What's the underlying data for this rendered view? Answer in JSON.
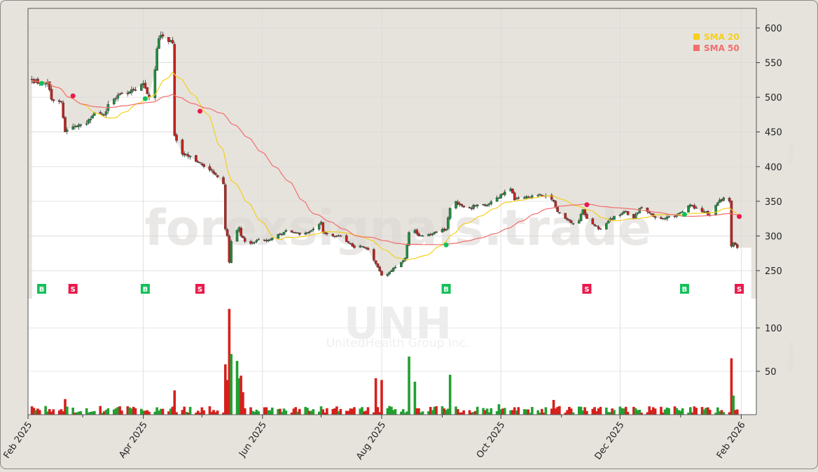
{
  "chart_data": {
    "type": "candlestick",
    "ticker": "UNH",
    "company": "UnitedHealth Group Inc.",
    "watermark": "forexsignals.trade",
    "ylabel": "Price",
    "ylabel_volume": "Volume",
    "ylim": [
      218,
      625
    ],
    "yticks": [
      250,
      300,
      350,
      400,
      450,
      500,
      550,
      600
    ],
    "volume_ylim": [
      0,
      135
    ],
    "volume_yticks": [
      50,
      100
    ],
    "xticks": [
      {
        "date": "2025-02-01",
        "label": "Feb 2025"
      },
      {
        "date": "2025-04-01",
        "label": "Apr 2025"
      },
      {
        "date": "2025-06-01",
        "label": "Jun 2025"
      },
      {
        "date": "2025-08-01",
        "label": "Aug 2025"
      },
      {
        "date": "2025-10-01",
        "label": "Oct 2025"
      },
      {
        "date": "2025-12-01",
        "label": "Dec 2025"
      },
      {
        "date": "2026-02-01",
        "label": "Feb 2026"
      }
    ],
    "minor_xticks": [
      "2025-03-01",
      "2025-05-01",
      "2025-07-01",
      "2025-09-01",
      "2025-11-01",
      "2026-01-01"
    ],
    "legend": [
      {
        "label": "SMA 20",
        "color": "#f5cf1d",
        "period": 20
      },
      {
        "label": "SMA 50",
        "color": "#f26d6d",
        "period": 50
      }
    ],
    "legend_position": "top-right",
    "grid": true,
    "colors": {
      "up": "#1f8f3c",
      "down": "#c3211f",
      "buy": "#14c05a",
      "sell": "#ea1a4b",
      "panel": "#e6e3dd"
    },
    "close_anchors": [
      [
        "2025-02-03",
        525
      ],
      [
        "2025-02-07",
        520
      ],
      [
        "2025-02-11",
        522
      ],
      [
        "2025-02-13",
        497
      ],
      [
        "2025-02-14",
        495
      ],
      [
        "2025-02-18",
        493
      ],
      [
        "2025-02-20",
        450
      ],
      [
        "2025-02-25",
        458
      ],
      [
        "2025-03-03",
        462
      ],
      [
        "2025-03-07",
        478
      ],
      [
        "2025-03-12",
        474
      ],
      [
        "2025-03-14",
        490
      ],
      [
        "2025-03-21",
        505
      ],
      [
        "2025-03-28",
        510
      ],
      [
        "2025-04-01",
        520
      ],
      [
        "2025-04-03",
        505
      ],
      [
        "2025-04-04",
        500
      ],
      [
        "2025-04-07",
        540
      ],
      [
        "2025-04-08",
        570
      ],
      [
        "2025-04-09",
        585
      ],
      [
        "2025-04-11",
        588
      ],
      [
        "2025-04-14",
        580
      ],
      [
        "2025-04-16",
        578
      ],
      [
        "2025-04-17",
        445
      ],
      [
        "2025-04-21",
        418
      ],
      [
        "2025-04-25",
        415
      ],
      [
        "2025-04-30",
        405
      ],
      [
        "2025-05-05",
        395
      ],
      [
        "2025-05-09",
        385
      ],
      [
        "2025-05-12",
        375
      ],
      [
        "2025-05-13",
        310
      ],
      [
        "2025-05-14",
        300
      ],
      [
        "2025-05-15",
        262
      ],
      [
        "2025-05-16",
        292
      ],
      [
        "2025-05-19",
        308
      ],
      [
        "2025-05-20",
        312
      ],
      [
        "2025-05-21",
        300
      ],
      [
        "2025-05-23",
        292
      ],
      [
        "2025-05-27",
        290
      ],
      [
        "2025-05-30",
        295
      ],
      [
        "2025-06-03",
        293
      ],
      [
        "2025-06-06",
        297
      ],
      [
        "2025-06-10",
        302
      ],
      [
        "2025-06-13",
        308
      ],
      [
        "2025-06-17",
        305
      ],
      [
        "2025-06-20",
        302
      ],
      [
        "2025-06-24",
        305
      ],
      [
        "2025-06-27",
        310
      ],
      [
        "2025-07-01",
        320
      ],
      [
        "2025-07-02",
        305
      ],
      [
        "2025-07-07",
        300
      ],
      [
        "2025-07-11",
        300
      ],
      [
        "2025-07-15",
        290
      ],
      [
        "2025-07-18",
        283
      ],
      [
        "2025-07-22",
        285
      ],
      [
        "2025-07-25",
        280
      ],
      [
        "2025-07-28",
        265
      ],
      [
        "2025-07-30",
        255
      ],
      [
        "2025-08-01",
        243
      ],
      [
        "2025-08-04",
        245
      ],
      [
        "2025-08-06",
        250
      ],
      [
        "2025-08-08",
        255
      ],
      [
        "2025-08-11",
        262
      ],
      [
        "2025-08-13",
        268
      ],
      [
        "2025-08-15",
        305
      ],
      [
        "2025-08-18",
        308
      ],
      [
        "2025-08-20",
        300
      ],
      [
        "2025-08-25",
        302
      ],
      [
        "2025-08-29",
        305
      ],
      [
        "2025-09-03",
        310
      ],
      [
        "2025-09-05",
        340
      ],
      [
        "2025-09-08",
        350
      ],
      [
        "2025-09-10",
        345
      ],
      [
        "2025-09-15",
        340
      ],
      [
        "2025-09-19",
        345
      ],
      [
        "2025-09-24",
        345
      ],
      [
        "2025-09-29",
        355
      ],
      [
        "2025-10-02",
        360
      ],
      [
        "2025-10-06",
        368
      ],
      [
        "2025-10-08",
        352
      ],
      [
        "2025-10-13",
        355
      ],
      [
        "2025-10-17",
        358
      ],
      [
        "2025-10-21",
        360
      ],
      [
        "2025-10-24",
        358
      ],
      [
        "2025-10-28",
        350
      ],
      [
        "2025-10-30",
        335
      ],
      [
        "2025-11-03",
        325
      ],
      [
        "2025-11-07",
        318
      ],
      [
        "2025-11-10",
        322
      ],
      [
        "2025-11-12",
        338
      ],
      [
        "2025-11-14",
        325
      ],
      [
        "2025-11-18",
        315
      ],
      [
        "2025-11-20",
        310
      ],
      [
        "2025-11-24",
        318
      ],
      [
        "2025-11-26",
        325
      ],
      [
        "2025-12-01",
        330
      ],
      [
        "2025-12-04",
        335
      ],
      [
        "2025-12-08",
        325
      ],
      [
        "2025-12-11",
        340
      ],
      [
        "2025-12-15",
        335
      ],
      [
        "2025-12-18",
        328
      ],
      [
        "2025-12-22",
        325
      ],
      [
        "2025-12-26",
        328
      ],
      [
        "2025-12-30",
        330
      ],
      [
        "2026-01-02",
        335
      ],
      [
        "2026-01-06",
        345
      ],
      [
        "2026-01-09",
        340
      ],
      [
        "2026-01-13",
        335
      ],
      [
        "2026-01-16",
        330
      ],
      [
        "2026-01-20",
        348
      ],
      [
        "2026-01-23",
        355
      ],
      [
        "2026-01-26",
        350
      ],
      [
        "2026-01-27",
        285
      ],
      [
        "2026-01-28",
        290
      ],
      [
        "2026-01-29",
        287
      ],
      [
        "2026-01-30",
        283
      ]
    ],
    "volume_spikes_millions": [
      [
        "2025-02-20",
        18
      ],
      [
        "2025-04-17",
        28
      ],
      [
        "2025-05-13",
        58
      ],
      [
        "2025-05-14",
        40
      ],
      [
        "2025-05-15",
        122
      ],
      [
        "2025-05-16",
        70
      ],
      [
        "2025-05-19",
        62
      ],
      [
        "2025-05-20",
        42
      ],
      [
        "2025-05-21",
        45
      ],
      [
        "2025-05-22",
        26
      ],
      [
        "2025-07-29",
        42
      ],
      [
        "2025-08-01",
        40
      ],
      [
        "2025-08-15",
        67
      ],
      [
        "2025-08-18",
        38
      ],
      [
        "2025-09-05",
        46
      ],
      [
        "2025-09-30",
        12
      ],
      [
        "2025-10-28",
        17
      ],
      [
        "2026-01-27",
        65
      ],
      [
        "2026-01-28",
        22
      ]
    ],
    "signals": [
      {
        "type": "B",
        "date": "2025-02-08",
        "price": 520
      },
      {
        "type": "S",
        "date": "2025-02-24",
        "price": 502
      },
      {
        "type": "B",
        "date": "2025-04-02",
        "price": 498
      },
      {
        "type": "S",
        "date": "2025-04-30",
        "price": 480
      },
      {
        "type": "B",
        "date": "2025-09-03",
        "price": 287
      },
      {
        "type": "S",
        "date": "2025-11-14",
        "price": 345
      },
      {
        "type": "B",
        "date": "2026-01-03",
        "price": 331
      },
      {
        "type": "S",
        "date": "2026-01-31",
        "price": 328
      }
    ]
  }
}
